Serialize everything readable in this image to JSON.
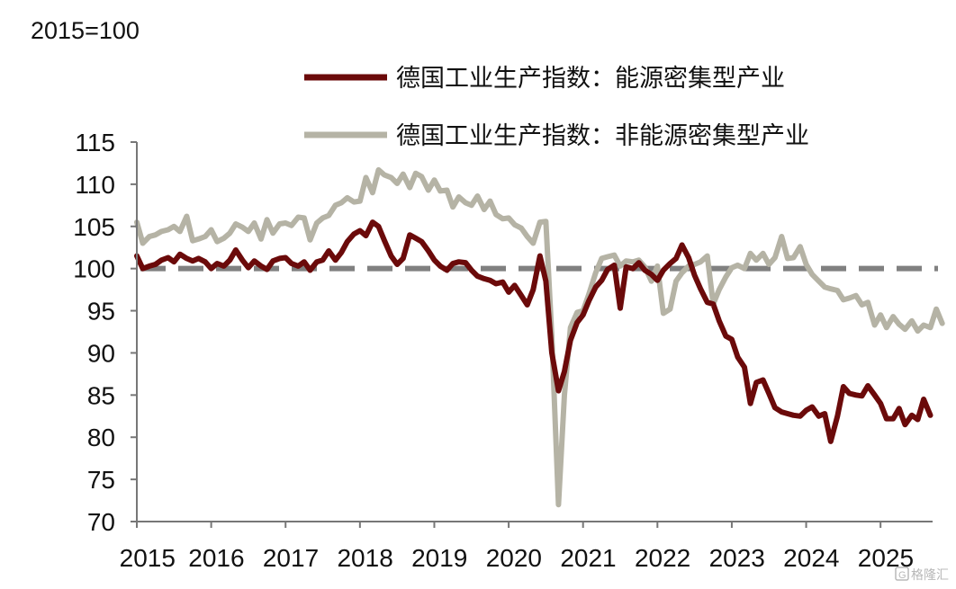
{
  "chart_data": {
    "type": "line",
    "unit_label": "2015=100",
    "ylim": [
      70,
      115
    ],
    "yticks": [
      70,
      75,
      80,
      85,
      90,
      95,
      100,
      105,
      110,
      115
    ],
    "xlim": [
      2015,
      2025.7
    ],
    "xticks": [
      "2015",
      "2016",
      "2017",
      "2018",
      "2019",
      "2020",
      "2021",
      "2022",
      "2023",
      "2024",
      "2025"
    ],
    "legend_position": "top-right",
    "reference_line": {
      "y": 100,
      "style": "dashed",
      "color": "#808080"
    },
    "series": [
      {
        "name": "德国工业生产指数：能源密集型产业",
        "color": "#6b0a0a",
        "points": [
          [
            2015.0,
            101.5
          ],
          [
            2015.08,
            100.0
          ],
          [
            2015.17,
            100.3
          ],
          [
            2015.25,
            100.5
          ],
          [
            2015.33,
            101.0
          ],
          [
            2015.42,
            101.3
          ],
          [
            2015.5,
            100.8
          ],
          [
            2015.58,
            101.7
          ],
          [
            2015.67,
            101.2
          ],
          [
            2015.75,
            100.9
          ],
          [
            2015.83,
            101.2
          ],
          [
            2015.92,
            100.8
          ],
          [
            2016.0,
            100.0
          ],
          [
            2016.08,
            100.6
          ],
          [
            2016.17,
            100.3
          ],
          [
            2016.25,
            101.0
          ],
          [
            2016.33,
            102.2
          ],
          [
            2016.42,
            101.0
          ],
          [
            2016.5,
            100.1
          ],
          [
            2016.58,
            100.9
          ],
          [
            2016.67,
            100.3
          ],
          [
            2016.75,
            99.9
          ],
          [
            2016.83,
            100.9
          ],
          [
            2016.92,
            101.2
          ],
          [
            2017.0,
            101.3
          ],
          [
            2017.08,
            100.6
          ],
          [
            2017.17,
            100.3
          ],
          [
            2017.25,
            100.8
          ],
          [
            2017.33,
            99.8
          ],
          [
            2017.42,
            100.8
          ],
          [
            2017.5,
            101.0
          ],
          [
            2017.58,
            102.1
          ],
          [
            2017.67,
            101.0
          ],
          [
            2017.75,
            101.9
          ],
          [
            2017.83,
            103.2
          ],
          [
            2017.92,
            104.1
          ],
          [
            2018.0,
            104.5
          ],
          [
            2018.08,
            103.9
          ],
          [
            2018.17,
            105.5
          ],
          [
            2018.25,
            105.0
          ],
          [
            2018.33,
            103.3
          ],
          [
            2018.42,
            101.5
          ],
          [
            2018.5,
            100.5
          ],
          [
            2018.58,
            101.2
          ],
          [
            2018.67,
            104.0
          ],
          [
            2018.75,
            103.6
          ],
          [
            2018.83,
            103.2
          ],
          [
            2018.92,
            102.1
          ],
          [
            2019.0,
            101.0
          ],
          [
            2019.08,
            100.3
          ],
          [
            2019.17,
            99.8
          ],
          [
            2019.25,
            100.6
          ],
          [
            2019.33,
            100.8
          ],
          [
            2019.42,
            100.7
          ],
          [
            2019.5,
            99.8
          ],
          [
            2019.58,
            99.1
          ],
          [
            2019.67,
            98.8
          ],
          [
            2019.75,
            98.6
          ],
          [
            2019.83,
            98.2
          ],
          [
            2019.92,
            98.4
          ],
          [
            2020.0,
            97.2
          ],
          [
            2020.08,
            98.0
          ],
          [
            2020.17,
            96.8
          ],
          [
            2020.25,
            95.7
          ],
          [
            2020.33,
            97.5
          ],
          [
            2020.42,
            101.5
          ],
          [
            2020.5,
            98.5
          ],
          [
            2020.58,
            90.0
          ],
          [
            2020.67,
            85.5
          ],
          [
            2020.75,
            87.8
          ],
          [
            2020.83,
            91.5
          ],
          [
            2020.92,
            93.6
          ],
          [
            2021.0,
            94.5
          ],
          [
            2021.08,
            96.2
          ],
          [
            2021.17,
            97.8
          ],
          [
            2021.25,
            98.6
          ],
          [
            2021.33,
            99.9
          ],
          [
            2021.42,
            100.4
          ],
          [
            2021.5,
            95.3
          ],
          [
            2021.58,
            100.2
          ],
          [
            2021.67,
            100.0
          ],
          [
            2021.75,
            100.7
          ],
          [
            2021.83,
            99.8
          ],
          [
            2021.92,
            99.3
          ],
          [
            2022.0,
            98.6
          ],
          [
            2022.08,
            99.8
          ],
          [
            2022.17,
            100.6
          ],
          [
            2022.25,
            101.2
          ],
          [
            2022.33,
            102.8
          ],
          [
            2022.42,
            101.3
          ],
          [
            2022.5,
            99.2
          ],
          [
            2022.58,
            97.6
          ],
          [
            2022.67,
            96.0
          ],
          [
            2022.75,
            95.8
          ],
          [
            2022.83,
            93.8
          ],
          [
            2022.92,
            92.0
          ],
          [
            2023.0,
            91.6
          ],
          [
            2023.08,
            89.5
          ],
          [
            2023.17,
            88.3
          ],
          [
            2023.25,
            84.0
          ],
          [
            2023.33,
            86.5
          ],
          [
            2023.42,
            86.8
          ],
          [
            2023.5,
            85.2
          ],
          [
            2023.58,
            83.5
          ],
          [
            2023.67,
            83.0
          ],
          [
            2023.75,
            82.8
          ],
          [
            2023.83,
            82.6
          ],
          [
            2023.92,
            82.5
          ],
          [
            2024.0,
            83.2
          ],
          [
            2024.08,
            83.6
          ],
          [
            2024.17,
            82.5
          ],
          [
            2024.25,
            82.8
          ],
          [
            2024.33,
            79.5
          ],
          [
            2024.42,
            82.5
          ],
          [
            2024.5,
            86.0
          ],
          [
            2024.58,
            85.2
          ],
          [
            2024.67,
            85.0
          ],
          [
            2024.75,
            84.9
          ],
          [
            2024.83,
            86.1
          ],
          [
            2024.92,
            85.0
          ],
          [
            2025.0,
            84.0
          ],
          [
            2025.08,
            82.2
          ],
          [
            2025.17,
            82.2
          ],
          [
            2025.25,
            83.4
          ],
          [
            2025.33,
            81.5
          ],
          [
            2025.42,
            82.6
          ],
          [
            2025.5,
            82.1
          ],
          [
            2025.58,
            84.5
          ],
          [
            2025.67,
            82.6
          ]
        ]
      },
      {
        "name": "德国工业生产指数：非能源密集型产业",
        "color": "#b5b3a5",
        "points": [
          [
            2015.0,
            105.5
          ],
          [
            2015.08,
            103.0
          ],
          [
            2015.17,
            103.8
          ],
          [
            2015.25,
            104.0
          ],
          [
            2015.33,
            104.4
          ],
          [
            2015.42,
            104.6
          ],
          [
            2015.5,
            105.0
          ],
          [
            2015.58,
            104.4
          ],
          [
            2015.67,
            106.2
          ],
          [
            2015.75,
            103.3
          ],
          [
            2015.83,
            103.5
          ],
          [
            2015.92,
            103.8
          ],
          [
            2016.0,
            104.6
          ],
          [
            2016.08,
            103.2
          ],
          [
            2016.17,
            103.6
          ],
          [
            2016.25,
            104.2
          ],
          [
            2016.33,
            105.3
          ],
          [
            2016.42,
            104.9
          ],
          [
            2016.5,
            104.4
          ],
          [
            2016.58,
            105.4
          ],
          [
            2016.67,
            103.5
          ],
          [
            2016.75,
            105.8
          ],
          [
            2016.83,
            104.2
          ],
          [
            2016.92,
            105.3
          ],
          [
            2017.0,
            105.4
          ],
          [
            2017.08,
            105.1
          ],
          [
            2017.17,
            106.1
          ],
          [
            2017.25,
            106.0
          ],
          [
            2017.33,
            103.4
          ],
          [
            2017.42,
            105.4
          ],
          [
            2017.5,
            106.0
          ],
          [
            2017.58,
            106.3
          ],
          [
            2017.67,
            107.5
          ],
          [
            2017.75,
            107.8
          ],
          [
            2017.83,
            108.4
          ],
          [
            2017.92,
            107.9
          ],
          [
            2018.0,
            108.0
          ],
          [
            2018.08,
            110.8
          ],
          [
            2018.17,
            109.0
          ],
          [
            2018.25,
            111.7
          ],
          [
            2018.33,
            111.1
          ],
          [
            2018.42,
            110.8
          ],
          [
            2018.5,
            110.1
          ],
          [
            2018.58,
            111.2
          ],
          [
            2018.67,
            109.6
          ],
          [
            2018.75,
            111.3
          ],
          [
            2018.83,
            110.9
          ],
          [
            2018.92,
            109.3
          ],
          [
            2019.0,
            110.5
          ],
          [
            2019.08,
            109.2
          ],
          [
            2019.17,
            109.3
          ],
          [
            2019.25,
            107.3
          ],
          [
            2019.33,
            108.5
          ],
          [
            2019.42,
            107.8
          ],
          [
            2019.5,
            107.5
          ],
          [
            2019.58,
            108.6
          ],
          [
            2019.67,
            107.0
          ],
          [
            2019.75,
            108.0
          ],
          [
            2019.83,
            106.4
          ],
          [
            2019.92,
            105.9
          ],
          [
            2020.0,
            106.0
          ],
          [
            2020.08,
            105.2
          ],
          [
            2020.17,
            104.8
          ],
          [
            2020.25,
            103.8
          ],
          [
            2020.33,
            103.0
          ],
          [
            2020.42,
            105.5
          ],
          [
            2020.5,
            105.6
          ],
          [
            2020.58,
            92.0
          ],
          [
            2020.67,
            72.0
          ],
          [
            2020.75,
            85.0
          ],
          [
            2020.83,
            93.0
          ],
          [
            2020.92,
            94.8
          ],
          [
            2021.0,
            95.0
          ],
          [
            2021.08,
            97.0
          ],
          [
            2021.17,
            99.5
          ],
          [
            2021.25,
            101.2
          ],
          [
            2021.33,
            101.4
          ],
          [
            2021.42,
            101.6
          ],
          [
            2021.5,
            100.3
          ],
          [
            2021.58,
            100.9
          ],
          [
            2021.67,
            100.8
          ],
          [
            2021.75,
            101.0
          ],
          [
            2021.83,
            100.2
          ],
          [
            2021.92,
            98.5
          ],
          [
            2022.0,
            100.3
          ],
          [
            2022.08,
            94.7
          ],
          [
            2022.17,
            95.2
          ],
          [
            2022.25,
            98.5
          ],
          [
            2022.33,
            99.5
          ],
          [
            2022.42,
            100.3
          ],
          [
            2022.5,
            100.5
          ],
          [
            2022.58,
            100.8
          ],
          [
            2022.67,
            101.5
          ],
          [
            2022.75,
            95.8
          ],
          [
            2022.83,
            97.5
          ],
          [
            2022.92,
            99.0
          ],
          [
            2023.0,
            100.1
          ],
          [
            2023.08,
            100.4
          ],
          [
            2023.17,
            100.0
          ],
          [
            2023.25,
            101.8
          ],
          [
            2023.33,
            101.0
          ],
          [
            2023.42,
            101.8
          ],
          [
            2023.5,
            100.5
          ],
          [
            2023.58,
            101.3
          ],
          [
            2023.67,
            103.8
          ],
          [
            2023.75,
            101.2
          ],
          [
            2023.83,
            101.3
          ],
          [
            2023.92,
            102.6
          ],
          [
            2024.0,
            100.5
          ],
          [
            2024.08,
            99.3
          ],
          [
            2024.17,
            98.5
          ],
          [
            2024.25,
            97.8
          ],
          [
            2024.33,
            97.6
          ],
          [
            2024.42,
            97.4
          ],
          [
            2024.5,
            96.3
          ],
          [
            2024.58,
            96.5
          ],
          [
            2024.67,
            96.8
          ],
          [
            2024.75,
            95.7
          ],
          [
            2024.83,
            96.0
          ],
          [
            2024.92,
            93.3
          ],
          [
            2025.0,
            94.5
          ],
          [
            2025.08,
            93.0
          ],
          [
            2025.17,
            94.3
          ],
          [
            2025.25,
            93.4
          ],
          [
            2025.33,
            92.8
          ],
          [
            2025.42,
            93.8
          ],
          [
            2025.5,
            92.6
          ],
          [
            2025.58,
            93.3
          ],
          [
            2025.67,
            93.0
          ],
          [
            2025.75,
            95.2
          ],
          [
            2025.83,
            93.5
          ]
        ]
      }
    ]
  },
  "watermark": "格隆汇",
  "watermark_icon": "g-logo-icon"
}
